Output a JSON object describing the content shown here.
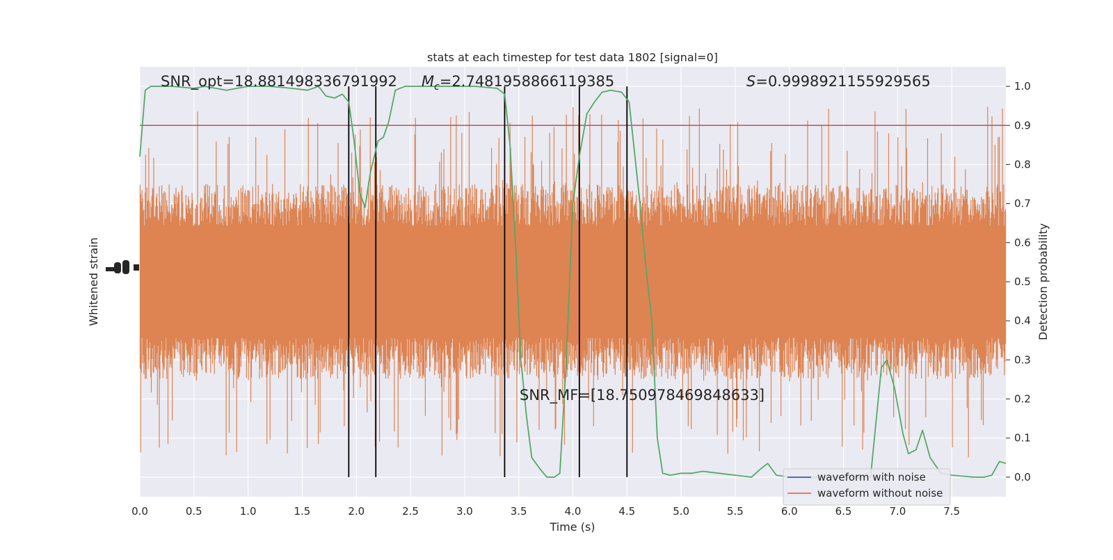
{
  "chart_data": {
    "type": "line",
    "title": "stats at each timestep for test data 1802 [signal=0]",
    "xlabel": "Time (s)",
    "ylabel_left": "Whitened strain",
    "ylabel_right": "Detection probability",
    "xlim": [
      0.0,
      8.0
    ],
    "ylim_right": [
      -0.05,
      1.05
    ],
    "x_ticks": [
      "0.0",
      "0.5",
      "1.0",
      "1.5",
      "2.0",
      "2.5",
      "3.0",
      "3.5",
      "4.0",
      "4.5",
      "5.0",
      "5.5",
      "6.0",
      "6.5",
      "7.0",
      "7.5"
    ],
    "right_ticks": [
      "0.0",
      "0.1",
      "0.2",
      "0.3",
      "0.4",
      "0.5",
      "0.6",
      "0.7",
      "0.8",
      "0.9",
      "1.0"
    ],
    "grid": true,
    "legend_position": "lower-right",
    "annotations": {
      "snr_opt": "SNR_opt=18.881498336791992",
      "mc_label": "M",
      "mc_sub": "c",
      "mc_value": "=2.7481958866119385",
      "s_label": "S",
      "s_value": "=0.9998921155929565",
      "snr_mf": "SNR_MF=[18.750978469848633]"
    },
    "threshold": 0.9,
    "vertical_lines_x": [
      1.93,
      2.18,
      3.37,
      4.06,
      4.5
    ],
    "series": [
      {
        "name": "waveform with noise",
        "color": "#4c72b0"
      },
      {
        "name": "waveform without noise",
        "color": "#dd8452",
        "band_center": 0.5,
        "band_typical_halfwidth": 0.2,
        "band_max_halfwidth": 0.45
      },
      {
        "color": "#55a868",
        "points": [
          [
            0.0,
            0.82
          ],
          [
            0.05,
            0.99
          ],
          [
            0.1,
            1.0
          ],
          [
            0.3,
            1.0
          ],
          [
            0.5,
            0.995
          ],
          [
            0.6,
            1.0
          ],
          [
            0.7,
            0.995
          ],
          [
            0.8,
            0.99
          ],
          [
            1.0,
            1.0
          ],
          [
            1.2,
            1.0
          ],
          [
            1.4,
            0.995
          ],
          [
            1.55,
            0.99
          ],
          [
            1.65,
            1.0
          ],
          [
            1.72,
            0.975
          ],
          [
            1.8,
            0.97
          ],
          [
            1.87,
            0.98
          ],
          [
            1.93,
            0.96
          ],
          [
            1.98,
            0.86
          ],
          [
            2.03,
            0.73
          ],
          [
            2.08,
            0.69
          ],
          [
            2.13,
            0.78
          ],
          [
            2.2,
            0.86
          ],
          [
            2.25,
            0.87
          ],
          [
            2.3,
            0.91
          ],
          [
            2.36,
            0.99
          ],
          [
            2.45,
            1.0
          ],
          [
            2.8,
            1.0
          ],
          [
            3.1,
            1.0
          ],
          [
            3.3,
            0.995
          ],
          [
            3.37,
            0.98
          ],
          [
            3.42,
            0.85
          ],
          [
            3.47,
            0.6
          ],
          [
            3.52,
            0.3
          ],
          [
            3.57,
            0.16
          ],
          [
            3.62,
            0.05
          ],
          [
            3.7,
            0.02
          ],
          [
            3.76,
            0.0
          ],
          [
            3.83,
            0.0
          ],
          [
            3.88,
            0.01
          ],
          [
            3.94,
            0.3
          ],
          [
            4.0,
            0.7
          ],
          [
            4.06,
            0.82
          ],
          [
            4.13,
            0.93
          ],
          [
            4.2,
            0.96
          ],
          [
            4.27,
            0.985
          ],
          [
            4.35,
            0.99
          ],
          [
            4.45,
            0.985
          ],
          [
            4.52,
            0.96
          ],
          [
            4.57,
            0.83
          ],
          [
            4.62,
            0.7
          ],
          [
            4.67,
            0.55
          ],
          [
            4.73,
            0.4
          ],
          [
            4.78,
            0.1
          ],
          [
            4.83,
            0.01
          ],
          [
            4.9,
            0.005
          ],
          [
            5.0,
            0.01
          ],
          [
            5.1,
            0.01
          ],
          [
            5.2,
            0.015
          ],
          [
            5.35,
            0.01
          ],
          [
            5.5,
            0.005
          ],
          [
            5.65,
            0.0
          ],
          [
            5.73,
            0.02
          ],
          [
            5.8,
            0.035
          ],
          [
            5.88,
            0.005
          ],
          [
            6.0,
            0.0
          ],
          [
            6.3,
            0.0
          ],
          [
            6.6,
            0.0
          ],
          [
            6.75,
            0.0
          ],
          [
            6.85,
            0.28
          ],
          [
            6.9,
            0.3
          ],
          [
            6.97,
            0.23
          ],
          [
            7.05,
            0.11
          ],
          [
            7.1,
            0.06
          ],
          [
            7.17,
            0.07
          ],
          [
            7.23,
            0.12
          ],
          [
            7.3,
            0.05
          ],
          [
            7.4,
            0.01
          ],
          [
            7.5,
            0.005
          ],
          [
            7.7,
            0.0
          ],
          [
            7.8,
            0.0
          ],
          [
            7.87,
            0.005
          ],
          [
            7.94,
            0.04
          ],
          [
            8.0,
            0.035
          ]
        ]
      }
    ],
    "colors": {
      "plot_background": "#eaeaf2",
      "grid": "#ffffff",
      "threshold": "#c44e52",
      "vertical_lines": "#000000",
      "probability_line": "#55a868"
    }
  }
}
